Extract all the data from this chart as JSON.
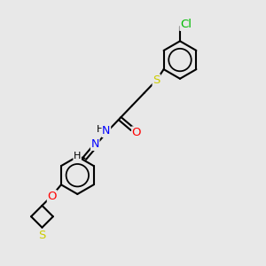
{
  "bg_color": "#e8e8e8",
  "bond_color": "#000000",
  "atom_colors": {
    "Cl": "#00bb00",
    "S": "#cccc00",
    "O": "#ff0000",
    "N": "#0000ff",
    "H": "#000000"
  },
  "font_size": 8.5,
  "fig_size": [
    3.0,
    3.0
  ],
  "dpi": 100
}
